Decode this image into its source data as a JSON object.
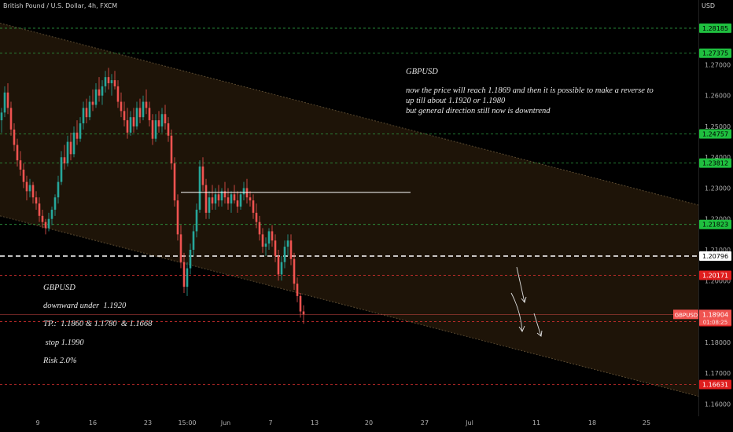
{
  "header": {
    "symbol": "British Pound / U.S. Dollar, 4h, FXCM",
    "currency": "USD"
  },
  "annotations": {
    "top_title": "GBPUSD",
    "top_text": "now the price will reach 1.1869 and then it is possible to make a reverse to\nup till about 1.1920 or 1.1980\nbut general direction still now is downtrend",
    "side_title": "GBPUSD",
    "side_line1": "downward under  1.1920",
    "side_line2": "TP.:  1.1860 & 1.1780  & 1.1668",
    "side_line3": " stop 1.1990",
    "side_line4": "Risk 2.0%"
  },
  "chart_data": {
    "type": "candlestick",
    "title": "",
    "ylim": [
      1.156,
      1.291
    ],
    "y_ticks": [
      "1.27000",
      "1.26000",
      "1.25000",
      "1.24000",
      "1.23000",
      "1.22000",
      "1.21000",
      "1.20000",
      "1.18000",
      "1.17000",
      "1.16000"
    ],
    "x_ticks": [
      "9",
      "16",
      "23",
      "15:00",
      "Jun",
      "7",
      "13",
      "20",
      "27",
      "Jul",
      "11",
      "18",
      "25"
    ],
    "levels": [
      {
        "value": 1.28185,
        "label": "1.28185",
        "color": "#2ea043",
        "style": "dashed",
        "badge_bg": "#1fbf3f",
        "badge_fg": "#000000"
      },
      {
        "value": 1.27375,
        "label": "1.27375",
        "color": "#2ea043",
        "style": "dashed",
        "badge_bg": "#1fbf3f",
        "badge_fg": "#000000"
      },
      {
        "value": 1.24757,
        "label": "1.24757",
        "color": "#2ea043",
        "style": "dashed",
        "badge_bg": "#1fbf3f",
        "badge_fg": "#000000"
      },
      {
        "value": 1.23812,
        "label": "1.23812",
        "color": "#2ea043",
        "style": "dashed",
        "badge_bg": "#1fbf3f",
        "badge_fg": "#000000"
      },
      {
        "value": 1.21823,
        "label": "1.21823",
        "color": "#2ea043",
        "style": "dashed",
        "badge_bg": "#1fbf3f",
        "badge_fg": "#000000"
      },
      {
        "value": 1.20796,
        "label": "1.20796",
        "color": "#ffffff",
        "style": "dashed-bold",
        "badge_bg": "#ffffff",
        "badge_fg": "#000000"
      },
      {
        "value": 1.20171,
        "label": "1.20171",
        "color": "#d32f2f",
        "style": "dashed",
        "badge_bg": "#e01e1e",
        "badge_fg": "#ffffff"
      },
      {
        "value": 1.18668,
        "label": "1.18668",
        "color": "#d32f2f",
        "style": "dashed",
        "badge_bg": "#e01e1e",
        "badge_fg": "#ffffff"
      },
      {
        "value": 1.16631,
        "label": "1.16631",
        "color": "#d32f2f",
        "style": "dashed",
        "badge_bg": "#e01e1e",
        "badge_fg": "#ffffff"
      }
    ],
    "current": {
      "symbol": "GBPUSD",
      "price": "1.18904",
      "countdown": "01:08:25",
      "value": 1.18904,
      "color": "#f05350"
    },
    "channel": {
      "upper_start": 1.2835,
      "upper_end": 1.2245,
      "lower_start": 1.221,
      "lower_end": 1.1625,
      "fill": "#1e1408",
      "edge": "#5a4a30"
    },
    "resistance": {
      "value": 1.2286,
      "from_index": 57,
      "to_index": 130,
      "color": "#ffffff"
    },
    "colors": {
      "up": "#26a69a",
      "down": "#ef5350"
    },
    "candle_count": 160,
    "candles": [
      [
        1.252,
        1.256,
        1.248,
        1.2545
      ],
      [
        1.2545,
        1.263,
        1.253,
        1.261
      ],
      [
        1.261,
        1.264,
        1.254,
        1.256
      ],
      [
        1.256,
        1.258,
        1.247,
        1.249
      ],
      [
        1.249,
        1.251,
        1.242,
        1.244
      ],
      [
        1.244,
        1.246,
        1.237,
        1.239
      ],
      [
        1.239,
        1.242,
        1.234,
        1.236
      ],
      [
        1.236,
        1.238,
        1.23,
        1.232
      ],
      [
        1.232,
        1.234,
        1.226,
        1.229
      ],
      [
        1.229,
        1.233,
        1.227,
        1.231
      ],
      [
        1.231,
        1.232,
        1.225,
        1.227
      ],
      [
        1.227,
        1.229,
        1.223,
        1.225
      ],
      [
        1.225,
        1.227,
        1.219,
        1.221
      ],
      [
        1.221,
        1.223,
        1.217,
        1.219
      ],
      [
        1.219,
        1.22,
        1.215,
        1.217
      ],
      [
        1.217,
        1.222,
        1.216,
        1.22
      ],
      [
        1.22,
        1.224,
        1.218,
        1.223
      ],
      [
        1.223,
        1.228,
        1.221,
        1.227
      ],
      [
        1.227,
        1.234,
        1.225,
        1.232
      ],
      [
        1.232,
        1.242,
        1.231,
        1.24
      ],
      [
        1.24,
        1.244,
        1.236,
        1.238
      ],
      [
        1.238,
        1.247,
        1.237,
        1.245
      ],
      [
        1.245,
        1.248,
        1.239,
        1.241
      ],
      [
        1.241,
        1.25,
        1.24,
        1.248
      ],
      [
        1.248,
        1.252,
        1.244,
        1.246
      ],
      [
        1.246,
        1.253,
        1.245,
        1.251
      ],
      [
        1.251,
        1.258,
        1.249,
        1.256
      ],
      [
        1.256,
        1.259,
        1.251,
        1.253
      ],
      [
        1.253,
        1.26,
        1.252,
        1.258
      ],
      [
        1.258,
        1.262,
        1.255,
        1.257
      ],
      [
        1.257,
        1.264,
        1.256,
        1.262
      ],
      [
        1.262,
        1.266,
        1.258,
        1.26
      ],
      [
        1.26,
        1.265,
        1.257,
        1.263
      ],
      [
        1.263,
        1.268,
        1.261,
        1.266
      ],
      [
        1.266,
        1.269,
        1.262,
        1.264
      ],
      [
        1.264,
        1.267,
        1.26,
        1.265
      ],
      [
        1.265,
        1.268,
        1.262,
        1.263
      ],
      [
        1.263,
        1.265,
        1.256,
        1.258
      ],
      [
        1.258,
        1.261,
        1.253,
        1.255
      ],
      [
        1.255,
        1.258,
        1.25,
        1.252
      ],
      [
        1.252,
        1.256,
        1.246,
        1.248
      ],
      [
        1.248,
        1.255,
        1.247,
        1.253
      ],
      [
        1.253,
        1.256,
        1.248,
        1.25
      ],
      [
        1.25,
        1.258,
        1.249,
        1.256
      ],
      [
        1.256,
        1.259,
        1.251,
        1.253
      ],
      [
        1.253,
        1.26,
        1.252,
        1.258
      ],
      [
        1.258,
        1.262,
        1.254,
        1.256
      ],
      [
        1.256,
        1.258,
        1.25,
        1.252
      ],
      [
        1.252,
        1.254,
        1.244,
        1.246
      ],
      [
        1.246,
        1.254,
        1.245,
        1.252
      ],
      [
        1.252,
        1.255,
        1.248,
        1.25
      ],
      [
        1.25,
        1.256,
        1.248,
        1.254
      ],
      [
        1.254,
        1.257,
        1.249,
        1.251
      ],
      [
        1.251,
        1.253,
        1.245,
        1.247
      ],
      [
        1.247,
        1.249,
        1.236,
        1.238
      ],
      [
        1.238,
        1.24,
        1.224,
        1.226
      ],
      [
        1.226,
        1.228,
        1.213,
        1.215
      ],
      [
        1.215,
        1.218,
        1.204,
        1.206
      ],
      [
        1.206,
        1.209,
        1.196,
        1.198
      ],
      [
        1.198,
        1.206,
        1.195,
        1.204
      ],
      [
        1.204,
        1.212,
        1.202,
        1.21
      ],
      [
        1.21,
        1.218,
        1.208,
        1.216
      ],
      [
        1.216,
        1.225,
        1.214,
        1.223
      ],
      [
        1.223,
        1.239,
        1.222,
        1.237
      ],
      [
        1.237,
        1.24,
        1.229,
        1.231
      ],
      [
        1.231,
        1.233,
        1.22,
        1.222
      ],
      [
        1.222,
        1.229,
        1.22,
        1.227
      ],
      [
        1.227,
        1.231,
        1.223,
        1.225
      ],
      [
        1.225,
        1.23,
        1.223,
        1.228
      ],
      [
        1.228,
        1.231,
        1.224,
        1.226
      ],
      [
        1.226,
        1.23,
        1.224,
        1.229
      ],
      [
        1.229,
        1.232,
        1.225,
        1.227
      ],
      [
        1.227,
        1.23,
        1.223,
        1.225
      ],
      [
        1.225,
        1.229,
        1.222,
        1.228
      ],
      [
        1.228,
        1.231,
        1.225,
        1.226
      ],
      [
        1.226,
        1.229,
        1.222,
        1.224
      ],
      [
        1.224,
        1.229,
        1.223,
        1.228
      ],
      [
        1.228,
        1.232,
        1.226,
        1.23
      ],
      [
        1.23,
        1.233,
        1.225,
        1.227
      ],
      [
        1.227,
        1.229,
        1.224,
        1.226
      ],
      [
        1.226,
        1.228,
        1.22,
        1.222
      ],
      [
        1.222,
        1.225,
        1.217,
        1.219
      ],
      [
        1.219,
        1.221,
        1.213,
        1.215
      ],
      [
        1.215,
        1.217,
        1.209,
        1.211
      ],
      [
        1.211,
        1.214,
        1.208,
        1.212
      ],
      [
        1.212,
        1.217,
        1.21,
        1.216
      ],
      [
        1.216,
        1.218,
        1.211,
        1.213
      ],
      [
        1.213,
        1.215,
        1.206,
        1.208
      ],
      [
        1.208,
        1.21,
        1.2,
        1.202
      ],
      [
        1.202,
        1.208,
        1.2,
        1.206
      ],
      [
        1.206,
        1.213,
        1.204,
        1.211
      ],
      [
        1.211,
        1.215,
        1.208,
        1.213
      ],
      [
        1.213,
        1.215,
        1.205,
        1.207
      ],
      [
        1.207,
        1.209,
        1.197,
        1.199
      ],
      [
        1.199,
        1.201,
        1.193,
        1.195
      ],
      [
        1.195,
        1.196,
        1.188,
        1.19
      ],
      [
        1.19,
        1.192,
        1.186,
        1.189
      ]
    ]
  }
}
